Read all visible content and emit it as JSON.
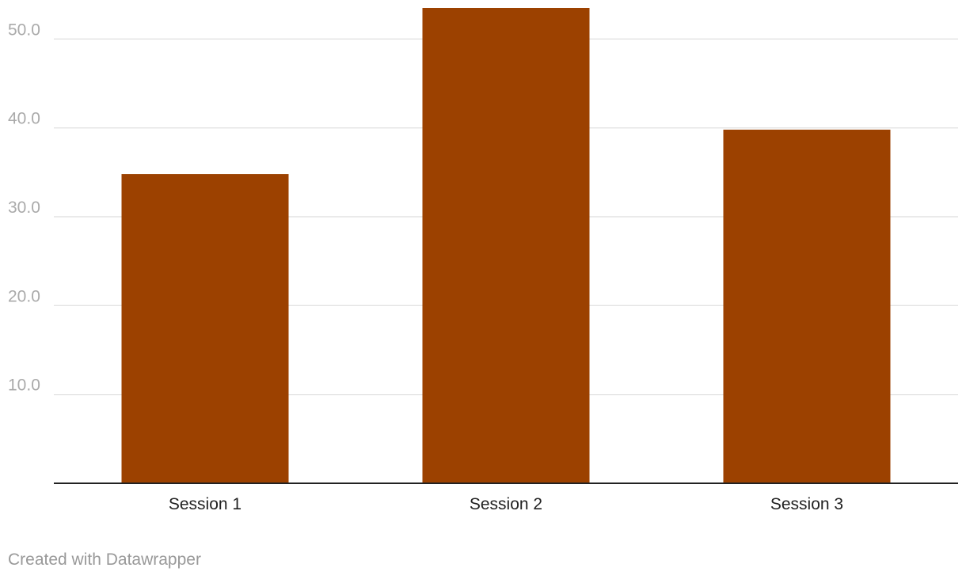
{
  "chart_data": {
    "type": "bar",
    "title": "",
    "xlabel": "",
    "ylabel": "",
    "categories": [
      "Session 1",
      "Session 2",
      "Session 3"
    ],
    "values": [
      34.8,
      53.5,
      39.8
    ],
    "ylim": [
      0,
      53.5
    ],
    "yticks": [
      10,
      20,
      30,
      40,
      50
    ],
    "ytick_labels": [
      "10.0",
      "20.0",
      "30.0",
      "40.0",
      "50.0"
    ],
    "bar_color": "#9c4100",
    "grid": true,
    "legend": "none"
  },
  "footer": {
    "credit": "Created with Datawrapper"
  }
}
